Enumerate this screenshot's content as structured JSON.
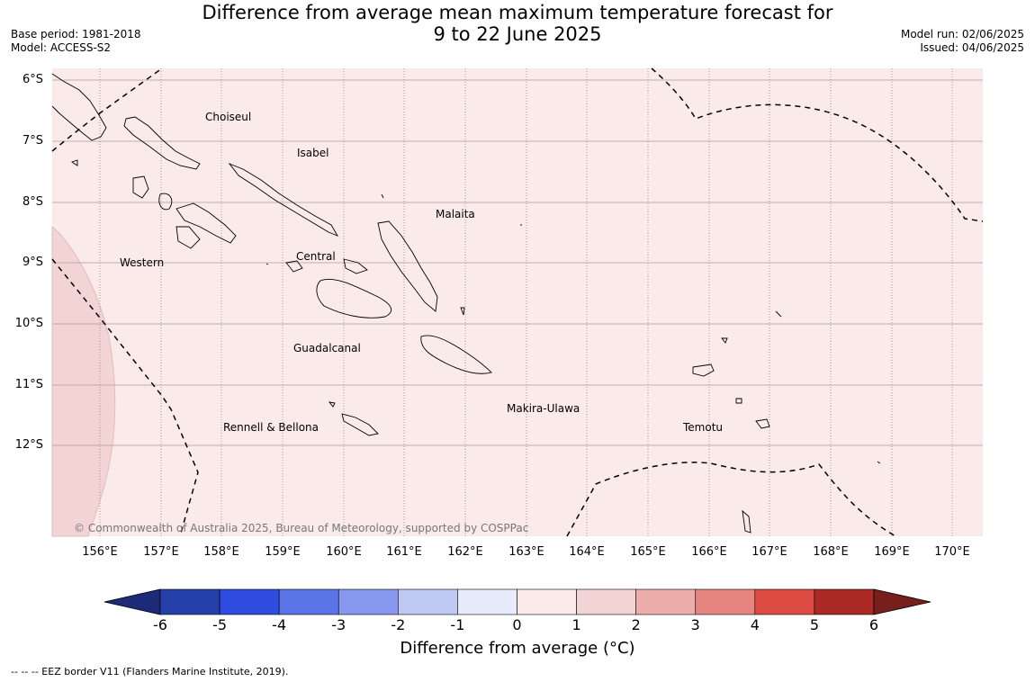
{
  "title_line1": "Difference from average mean maximum temperature forecast for",
  "title_line2": "9 to 22 June 2025",
  "base_period": "Base period: 1981-2018",
  "model": "Model: ACCESS-S2",
  "model_run": "Model run: 02/06/2025",
  "issued": "Issued: 04/06/2025",
  "lat_labels": [
    "6°S",
    "7°S",
    "8°S",
    "9°S",
    "10°S",
    "11°S",
    "12°S"
  ],
  "lon_labels": [
    "156°E",
    "157°E",
    "158°E",
    "159°E",
    "160°E",
    "161°E",
    "162°E",
    "163°E",
    "164°E",
    "165°E",
    "166°E",
    "167°E",
    "168°E",
    "169°E",
    "170°E"
  ],
  "regions": {
    "choiseul": "Choiseul",
    "isabel": "Isabel",
    "malaita": "Malaita",
    "western": "Western",
    "central": "Central",
    "guadalcanal": "Guadalcanal",
    "makira_ulawa": "Makira-Ulawa",
    "rennell_bellona": "Rennell & Bellona",
    "temotu": "Temotu"
  },
  "copyright": "© Commonwealth of Australia 2025, Bureau of Meteorology, supported by COSPPac",
  "colorbar": {
    "ticks": [
      "-6",
      "-5",
      "-4",
      "-3",
      "-2",
      "-1",
      "0",
      "1",
      "2",
      "3",
      "4",
      "5",
      "6"
    ],
    "colors": [
      "#2540a8",
      "#2f4ce0",
      "#5a74e8",
      "#8798ee",
      "#c0c8f4",
      "#e8ebfb",
      "#fbeaea",
      "#f2d4d4",
      "#edadab",
      "#e6857f",
      "#dd4c42",
      "#ac2a26"
    ],
    "under_color": "#1d2a78",
    "over_color": "#761f1c",
    "title": "Difference from average (°C)"
  },
  "colors": {
    "field_0_1": "#fbeaea",
    "field_1_2": "#f2d4d4",
    "gridline": "#b39a9a",
    "coastline": "#000000"
  },
  "eez_note": "--  --  -- EEZ border V11 (Flanders Marine Institute, 2019)."
}
